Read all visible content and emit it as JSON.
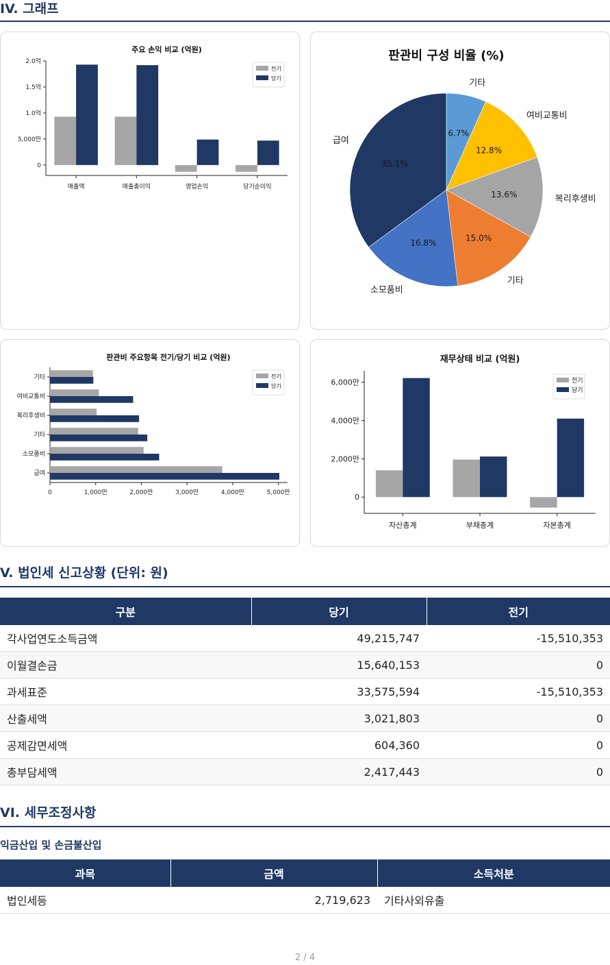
{
  "sections": {
    "graphs": "IV. 그래프",
    "corp_tax": "V. 법인세 신고상황 (단위: 원)",
    "tax_adjust": "VI. 세무조정사항"
  },
  "chart_data": [
    {
      "id": "pl",
      "type": "bar",
      "title": "주요 손익 비교 (억원)",
      "categories": [
        "매출액",
        "매출총이익",
        "영업손익",
        "당기순이익"
      ],
      "series": [
        {
          "name": "전기",
          "color": "#a6a6a6",
          "values": [
            0.93,
            0.93,
            -0.13,
            -0.13
          ]
        },
        {
          "name": "당기",
          "color": "#1f3864",
          "values": [
            1.93,
            1.92,
            0.49,
            0.47
          ]
        }
      ],
      "ylim": [
        -0.2,
        2.0
      ],
      "yticks": [
        0,
        0.5,
        1.0,
        1.5,
        2.0
      ],
      "ytick_labels": [
        "0",
        "5,000만",
        "1.0억",
        "1.5억",
        "2.0억"
      ],
      "legend": "top-right"
    },
    {
      "id": "pie",
      "type": "pie",
      "title": "판관비 구성 비율 (%)",
      "slices": [
        {
          "label": "기타",
          "value": 6.7,
          "pct": "6.7%",
          "color": "#5b9bd5"
        },
        {
          "label": "여비교통비",
          "value": 12.8,
          "pct": "12.8%",
          "color": "#ffc000"
        },
        {
          "label": "복리후생비",
          "value": 13.6,
          "pct": "13.6%",
          "color": "#a5a5a5"
        },
        {
          "label": "기타",
          "value": 15.0,
          "pct": "15.0%",
          "color": "#ed7d31"
        },
        {
          "label": "소모품비",
          "value": 16.8,
          "pct": "16.8%",
          "color": "#4472c4"
        },
        {
          "label": "급여",
          "value": 35.1,
          "pct": "35.1%",
          "color": "#1f3864"
        }
      ]
    },
    {
      "id": "sga",
      "type": "bar",
      "orientation": "horizontal",
      "title": "판관비 주요항목 전기/당기 비교 (억원)",
      "categories": [
        "급여",
        "소모품비",
        "기타",
        "복리후생비",
        "여비교통비",
        "기타"
      ],
      "series": [
        {
          "name": "전기",
          "color": "#a6a6a6",
          "values": [
            3770,
            2050,
            1930,
            1020,
            1070,
            940
          ]
        },
        {
          "name": "당기",
          "color": "#1f3864",
          "values": [
            5020,
            2390,
            2130,
            1950,
            1820,
            950
          ]
        }
      ],
      "xlim": [
        0,
        5200
      ],
      "xticks": [
        0,
        1000,
        2000,
        3000,
        4000,
        5000
      ],
      "xtick_labels": [
        "0",
        "1,000만",
        "2,000만",
        "3,000만",
        "4,000만",
        "5,000만"
      ],
      "legend": "top-right"
    },
    {
      "id": "bs",
      "type": "bar",
      "title": "재무상태 비교 (억원)",
      "categories": [
        "자산총계",
        "부채총계",
        "자본총계"
      ],
      "series": [
        {
          "name": "전기",
          "color": "#a6a6a6",
          "values": [
            1400,
            1960,
            -550
          ]
        },
        {
          "name": "당기",
          "color": "#1f3864",
          "values": [
            6220,
            2120,
            4100
          ]
        }
      ],
      "ylim": [
        -850,
        6600
      ],
      "yticks": [
        0,
        2000,
        4000,
        6000
      ],
      "ytick_labels": [
        "0",
        "2,000만",
        "4,000만",
        "6,000만"
      ],
      "legend": "top-right"
    }
  ],
  "corp_tax_table": {
    "headers": [
      "구분",
      "당기",
      "전기"
    ],
    "rows": [
      [
        "각사업연도소득금액",
        "49,215,747",
        "-15,510,353"
      ],
      [
        "이월결손금",
        "15,640,153",
        "0"
      ],
      [
        "과세표준",
        "33,575,594",
        "-15,510,353"
      ],
      [
        "산출세액",
        "3,021,803",
        "0"
      ],
      [
        "공제감면세액",
        "604,360",
        "0"
      ],
      [
        "총부담세액",
        "2,417,443",
        "0"
      ]
    ]
  },
  "income_inclusion": {
    "title": "익금산입 및 손금불산입",
    "headers": [
      "과목",
      "금액",
      "소득처분"
    ],
    "rows": [
      [
        "법인세등",
        "2,719,623",
        "기타사외유출"
      ]
    ]
  },
  "footer": "2 / 4"
}
